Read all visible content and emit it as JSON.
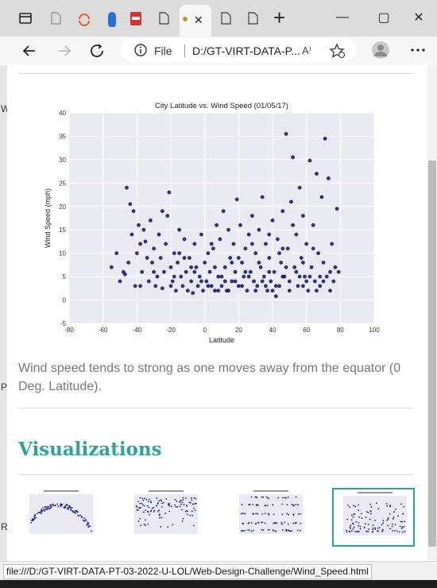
{
  "browser": {
    "address": {
      "scheme_label": "File",
      "url_display": "D:/GT-VIRT-DATA-P...",
      "read_aloud_glyph": "A⁾"
    },
    "window_controls": {
      "minimize": "—",
      "maximize": "▢",
      "close": "✕"
    },
    "new_tab_glyph": "+",
    "tab_close_glyph": "✕"
  },
  "page": {
    "left_gutter_letters": [
      "W",
      "P",
      "R"
    ],
    "figure": {
      "title": "City Latitude vs. Wind Speed (01/05/17)",
      "xlabel": "Latitude",
      "ylabel": "Wind Speed (mph)"
    },
    "caption": "Wind speed tends to strong as one moves away from the equator (0 Deg. Latitude).",
    "visualizations_title": "Visualizations",
    "thumbnails": [
      {
        "name": "Latitude vs. Max Temperature",
        "active": false
      },
      {
        "name": "Latitude vs. Humidity",
        "active": false
      },
      {
        "name": "Latitude vs. Cloudiness",
        "active": false
      },
      {
        "name": "Latitude vs. Wind Speed",
        "active": true
      }
    ]
  },
  "status_bar": {
    "url": "file:///D:/GT-VIRT-DATA-PT-03-2022-U-LOL/Web-Design-Challenge/Wind_Speed.html"
  },
  "colors": {
    "accent": "#2aa59a",
    "marker": "#1a1a8c",
    "plot_bg": "#eaeaf2"
  },
  "chart_data": {
    "type": "scatter",
    "title": "City Latitude vs. Wind Speed (01/05/17)",
    "xlabel": "Latitude",
    "ylabel": "Wind Speed (mph)",
    "xlim": [
      -80,
      100
    ],
    "ylim": [
      -5,
      40
    ],
    "xticks": [
      -80,
      -60,
      -40,
      -20,
      0,
      20,
      40,
      60,
      80,
      100
    ],
    "yticks": [
      -5,
      0,
      5,
      10,
      15,
      20,
      25,
      30,
      35,
      40
    ],
    "grid": true,
    "points": [
      [
        -55,
        7
      ],
      [
        -52,
        10
      ],
      [
        -48,
        6
      ],
      [
        -47,
        5.5
      ],
      [
        -46,
        24
      ],
      [
        -44,
        20.5
      ],
      [
        -43,
        14
      ],
      [
        -42,
        19
      ],
      [
        -41,
        3
      ],
      [
        -40,
        10
      ],
      [
        -39,
        16
      ],
      [
        -38,
        12
      ],
      [
        -37,
        6
      ],
      [
        -36,
        15
      ],
      [
        -35,
        12.5
      ],
      [
        -34,
        9
      ],
      [
        -33,
        4
      ],
      [
        -32,
        17
      ],
      [
        -31,
        8
      ],
      [
        -30,
        11
      ],
      [
        -29,
        3
      ],
      [
        -28,
        5
      ],
      [
        -27,
        14
      ],
      [
        -26,
        9
      ],
      [
        -25,
        19
      ],
      [
        -24,
        6
      ],
      [
        -23,
        12
      ],
      [
        -22,
        18
      ],
      [
        -21,
        23
      ],
      [
        -20,
        7
      ],
      [
        -19,
        4
      ],
      [
        -18,
        10
      ],
      [
        -17,
        2
      ],
      [
        -16,
        8
      ],
      [
        -15,
        15
      ],
      [
        -14,
        5
      ],
      [
        -13,
        3
      ],
      [
        -12,
        13
      ],
      [
        -11,
        6
      ],
      [
        -10,
        2
      ],
      [
        -9,
        9
      ],
      [
        -8,
        4
      ],
      [
        -7,
        1.5
      ],
      [
        -6,
        12
      ],
      [
        -5,
        7
      ],
      [
        -4,
        3
      ],
      [
        -3,
        5
      ],
      [
        -2,
        14
      ],
      [
        -1,
        2
      ],
      [
        0,
        8
      ],
      [
        1,
        4
      ],
      [
        2,
        10
      ],
      [
        3,
        6
      ],
      [
        4,
        3
      ],
      [
        5,
        11
      ],
      [
        6,
        2
      ],
      [
        7,
        16
      ],
      [
        8,
        5
      ],
      [
        9,
        13
      ],
      [
        10,
        3
      ],
      [
        11,
        19
      ],
      [
        12,
        7
      ],
      [
        13,
        2
      ],
      [
        14,
        15
      ],
      [
        15,
        9
      ],
      [
        16,
        4
      ],
      [
        17,
        12
      ],
      [
        18,
        6
      ],
      [
        19,
        21.5
      ],
      [
        20,
        3
      ],
      [
        21,
        16
      ],
      [
        22,
        8
      ],
      [
        23,
        5
      ],
      [
        24,
        11
      ],
      [
        25,
        2
      ],
      [
        26,
        14
      ],
      [
        27,
        6
      ],
      [
        28,
        18
      ],
      [
        29,
        4
      ],
      [
        30,
        10
      ],
      [
        31,
        3
      ],
      [
        32,
        15
      ],
      [
        33,
        7
      ],
      [
        34,
        22
      ],
      [
        35,
        5
      ],
      [
        36,
        12
      ],
      [
        37,
        2
      ],
      [
        38,
        9
      ],
      [
        39,
        4
      ],
      [
        40,
        17
      ],
      [
        41,
        6
      ],
      [
        42,
        0.8
      ],
      [
        43,
        13
      ],
      [
        44,
        3
      ],
      [
        45,
        8
      ],
      [
        46,
        19
      ],
      [
        47,
        5
      ],
      [
        48,
        35.5
      ],
      [
        49,
        11
      ],
      [
        50,
        4
      ],
      [
        51,
        21
      ],
      [
        52,
        30.5
      ],
      [
        53,
        7
      ],
      [
        54,
        14
      ],
      [
        55,
        3
      ],
      [
        56,
        24
      ],
      [
        57,
        9
      ],
      [
        58,
        18
      ],
      [
        59,
        5
      ],
      [
        60,
        12
      ],
      [
        61,
        2
      ],
      [
        62,
        29.8
      ],
      [
        63,
        7
      ],
      [
        64,
        16
      ],
      [
        65,
        4
      ],
      [
        66,
        27
      ],
      [
        67,
        10
      ],
      [
        68,
        3
      ],
      [
        69,
        22
      ],
      [
        70,
        8
      ],
      [
        71,
        34.5
      ],
      [
        72,
        5
      ],
      [
        73,
        26
      ],
      [
        74,
        2
      ],
      [
        75,
        12
      ],
      [
        76,
        4
      ],
      [
        77,
        7
      ],
      [
        78,
        19.5
      ],
      [
        79,
        6
      ],
      [
        -50,
        4
      ],
      [
        -45,
        8
      ],
      [
        -38,
        3
      ],
      [
        -30,
        6
      ],
      [
        -25,
        2.5
      ],
      [
        -18,
        5
      ],
      [
        -12,
        9
      ],
      [
        -6,
        6
      ],
      [
        -2,
        4
      ],
      [
        2,
        3
      ],
      [
        6,
        7
      ],
      [
        10,
        5
      ],
      [
        14,
        2
      ],
      [
        18,
        4
      ],
      [
        22,
        3
      ],
      [
        26,
        5
      ],
      [
        30,
        2
      ],
      [
        34,
        4
      ],
      [
        38,
        6
      ],
      [
        42,
        3
      ],
      [
        46,
        5
      ],
      [
        50,
        2
      ],
      [
        54,
        6
      ],
      [
        58,
        3
      ],
      [
        62,
        5
      ],
      [
        66,
        2
      ],
      [
        70,
        4
      ],
      [
        74,
        6
      ],
      [
        12,
        4
      ],
      [
        24,
        6
      ],
      [
        36,
        3
      ],
      [
        48,
        7
      ],
      [
        60,
        4
      ],
      [
        20,
        9
      ],
      [
        28,
        12
      ],
      [
        44,
        10
      ],
      [
        52,
        16
      ],
      [
        64,
        11
      ],
      [
        56,
        5
      ],
      [
        40,
        2
      ],
      [
        32,
        8
      ],
      [
        -15,
        10
      ],
      [
        -8,
        7
      ],
      [
        4,
        12
      ],
      [
        16,
        8
      ],
      [
        -20,
        3
      ],
      [
        8,
        2
      ],
      [
        38,
        14
      ],
      [
        46,
        11
      ],
      [
        58,
        8
      ],
      [
        68,
        5
      ]
    ]
  }
}
